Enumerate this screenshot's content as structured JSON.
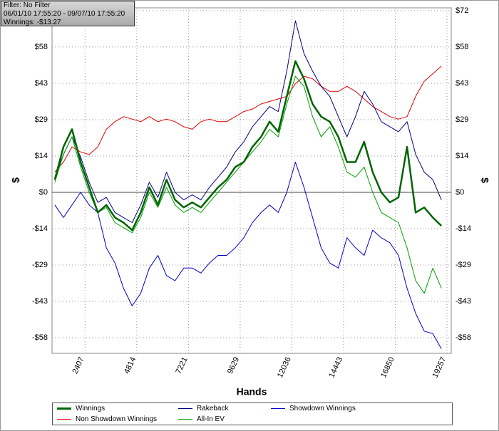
{
  "chart_data": {
    "type": "line",
    "info": [
      "Filter: No Filter",
      "06/01/10 17:55:20 - 09/07/10 17:55:20",
      "Winnings: -$13.27"
    ],
    "x_label": "Hands",
    "y_label": "$",
    "x": [
      1000,
      1400,
      1800,
      2200,
      2600,
      3000,
      3400,
      3800,
      4200,
      4600,
      5000,
      5400,
      5800,
      6200,
      6600,
      7000,
      7400,
      7800,
      8200,
      8600,
      9000,
      9400,
      9800,
      10200,
      10600,
      11000,
      11400,
      11800,
      12200,
      12600,
      13000,
      13400,
      13800,
      14200,
      14600,
      15000,
      15400,
      15800,
      16200,
      16600,
      17000,
      17400,
      17800,
      18200,
      18600,
      19000
    ],
    "series": [
      {
        "name": "Winnings",
        "color": "#006400",
        "values": [
          5,
          18,
          25,
          12,
          2,
          -8,
          -5,
          -10,
          -12,
          -15,
          -8,
          2,
          -5,
          5,
          -3,
          -6,
          -4,
          -6,
          -2,
          2,
          5,
          10,
          12,
          18,
          22,
          28,
          24,
          38,
          52,
          45,
          35,
          30,
          28,
          22,
          12,
          12,
          20,
          8,
          0,
          -4,
          -2,
          18,
          -8,
          -6,
          -10,
          -13.27
        ]
      },
      {
        "name": "Rakeback",
        "color": "#000080",
        "values": [
          6,
          15,
          22,
          14,
          4,
          -4,
          -2,
          -8,
          -10,
          -12,
          -5,
          4,
          -2,
          8,
          0,
          -3,
          -1,
          -3,
          2,
          6,
          10,
          16,
          20,
          26,
          30,
          34,
          32,
          48,
          68,
          55,
          48,
          42,
          38,
          30,
          22,
          30,
          40,
          35,
          28,
          26,
          24,
          28,
          15,
          8,
          5,
          -3
        ]
      },
      {
        "name": "Showdown Winnings",
        "color": "#0000cc",
        "values": [
          -5,
          -10,
          -5,
          0,
          -5,
          -8,
          -22,
          -28,
          -38,
          -45,
          -40,
          -30,
          -25,
          -33,
          -35,
          -30,
          -30,
          -32,
          -28,
          -25,
          -25,
          -22,
          -18,
          -12,
          -8,
          -5,
          -8,
          0,
          12,
          2,
          -10,
          -22,
          -28,
          -30,
          -18,
          -22,
          -25,
          -15,
          -18,
          -20,
          -25,
          -38,
          -48,
          -55,
          -56,
          -62
        ]
      },
      {
        "name": "Non Showdown Winnings",
        "color": "#dd0000",
        "values": [
          8,
          12,
          18,
          16,
          15,
          18,
          25,
          28,
          30,
          29,
          28,
          30,
          28,
          29,
          28,
          26,
          25,
          28,
          29,
          28,
          28,
          30,
          32,
          33,
          35,
          36,
          37,
          38,
          43,
          46,
          45,
          42,
          40,
          40,
          42,
          40,
          37,
          34,
          32,
          30,
          29,
          30,
          38,
          44,
          47,
          50
        ]
      },
      {
        "name": "All-In EV",
        "color": "#00a000",
        "values": [
          4,
          15,
          22,
          10,
          0,
          -8,
          -6,
          -12,
          -14,
          -16,
          -10,
          0,
          -6,
          2,
          -5,
          -8,
          -6,
          -8,
          -4,
          0,
          4,
          8,
          12,
          16,
          20,
          25,
          22,
          35,
          46,
          42,
          30,
          22,
          26,
          18,
          8,
          6,
          10,
          0,
          -8,
          -10,
          -12,
          -22,
          -35,
          -40,
          -30,
          -38
        ]
      }
    ],
    "xlim": [
      870,
      19457
    ],
    "xticks": [
      2407,
      4814,
      7221,
      9629,
      12036,
      14443,
      16850,
      19257
    ],
    "ylim": [
      -63.8,
      73.1
    ],
    "yticks": [
      {
        "value": -57.6,
        "label": "-$58"
      },
      {
        "value": -43.2,
        "label": "-$43"
      },
      {
        "value": -28.8,
        "label": "-$29"
      },
      {
        "value": -14.4,
        "label": "-$14"
      },
      {
        "value": 0,
        "label": "$0"
      },
      {
        "value": 14.4,
        "label": "$14"
      },
      {
        "value": 28.8,
        "label": "$29"
      },
      {
        "value": 43.2,
        "label": "$43"
      },
      {
        "value": 57.6,
        "label": "$58"
      },
      {
        "value": 72,
        "label": "$72"
      }
    ],
    "grid": true
  }
}
